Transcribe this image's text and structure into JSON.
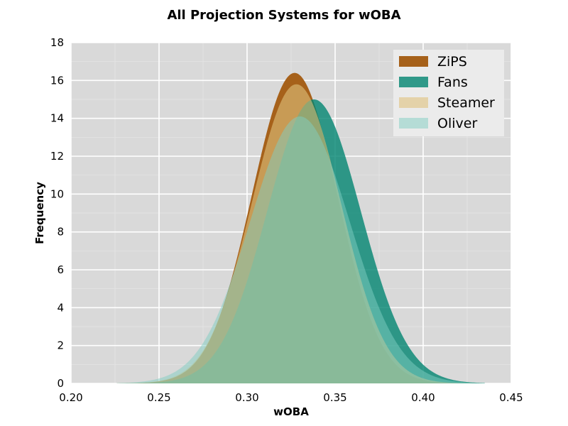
{
  "chart_data": {
    "type": "area",
    "title": "All Projection Systems for wOBA",
    "xlabel": "wOBA",
    "ylabel": "Frequency",
    "xlim": [
      0.2,
      0.45
    ],
    "ylim": [
      0,
      18
    ],
    "xticks": [
      "0.20",
      "0.25",
      "0.30",
      "0.35",
      "0.40",
      "0.45"
    ],
    "yticks": [
      "0",
      "2",
      "4",
      "6",
      "8",
      "10",
      "12",
      "14",
      "16",
      "18"
    ],
    "grid": true,
    "legend": "top-right",
    "x_range": [
      0.226,
      0.435
    ],
    "series": [
      {
        "name": "ZiPS",
        "color": "#a6611a",
        "opacity": 1.0,
        "peak_x": 0.327,
        "peak_y": 16.4,
        "sd": 0.0243
      },
      {
        "name": "Fans",
        "color": "#018571",
        "opacity": 0.8,
        "peak_x": 0.338,
        "peak_y": 15.0,
        "sd": 0.0266
      },
      {
        "name": "Steamer",
        "color": "#dfc27d",
        "opacity": 0.6,
        "peak_x": 0.328,
        "peak_y": 15.8,
        "sd": 0.0252
      },
      {
        "name": "Oliver",
        "color": "#80cdc1",
        "opacity": 0.5,
        "peak_x": 0.33,
        "peak_y": 14.1,
        "sd": 0.0283
      }
    ]
  }
}
